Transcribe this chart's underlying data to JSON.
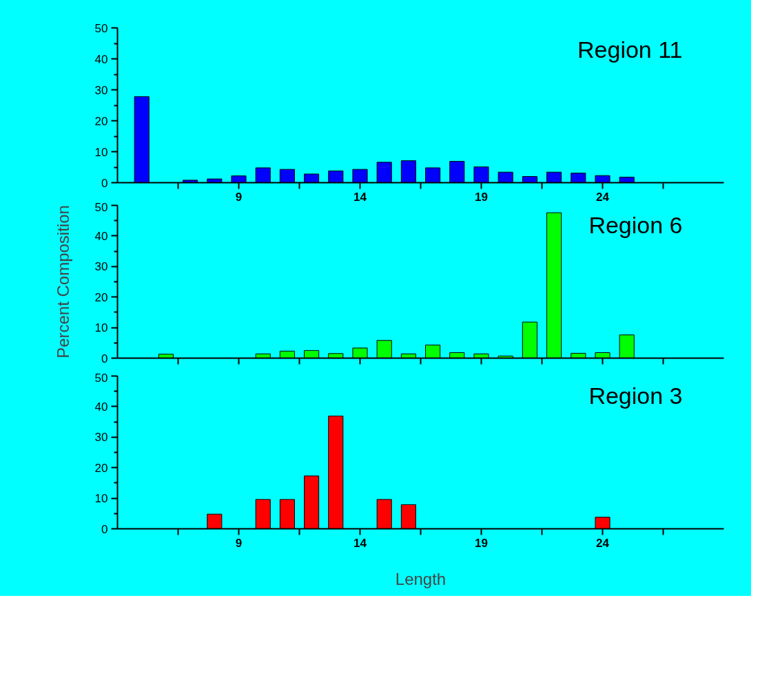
{
  "chart_data": [
    {
      "type": "bar",
      "annotations": [
        "Region 11"
      ],
      "x": [
        5,
        7,
        8,
        9,
        10,
        11,
        12,
        13,
        14,
        15,
        16,
        17,
        18,
        19,
        20,
        21,
        22,
        23,
        24,
        25
      ],
      "series": [
        {
          "color": "#0000ff",
          "values": [
            27.8,
            0.8,
            1.2,
            2.2,
            4.8,
            4.3,
            2.8,
            3.8,
            4.3,
            6.6,
            7.1,
            4.8,
            6.9,
            5.1,
            3.4,
            2.0,
            3.4,
            3.1,
            2.3,
            1.8
          ]
        }
      ],
      "xlim": [
        4,
        29
      ],
      "xticks": [
        {
          "value": 6.5,
          "label": null
        },
        9,
        {
          "value": 11.5,
          "label": null
        },
        14,
        {
          "value": 16.5,
          "label": null
        },
        19,
        {
          "value": 21.5,
          "label": null
        },
        24,
        {
          "value": 26.5,
          "label": null
        }
      ],
      "ylim": [
        0,
        50
      ],
      "yticks": [
        0,
        10,
        20,
        30,
        40,
        50
      ]
    },
    {
      "type": "bar",
      "annotations": [
        "Region 6"
      ],
      "ylabel": "Percent Composition",
      "x": [
        6,
        10,
        11,
        12,
        13,
        14,
        15,
        16,
        17,
        18,
        19,
        20,
        21,
        22,
        23,
        24,
        25
      ],
      "series": [
        {
          "color": "#00ff00",
          "values": [
            1.3,
            1.4,
            2.3,
            2.5,
            1.5,
            3.3,
            5.8,
            1.4,
            4.3,
            1.8,
            1.4,
            0.7,
            11.8,
            47.6,
            1.6,
            1.8,
            7.6
          ]
        }
      ],
      "xlim": [
        4,
        29
      ],
      "xticks": [
        {
          "value": 6.5,
          "label": null
        },
        9,
        {
          "value": 11.5,
          "label": null
        },
        14,
        {
          "value": 16.5,
          "label": null
        },
        19,
        {
          "value": 21.5,
          "label": null
        },
        24,
        {
          "value": 26.5,
          "label": null
        }
      ],
      "ylim": [
        0,
        50
      ],
      "yticks": [
        0,
        10,
        20,
        30,
        40,
        50
      ],
      "tick_labels": "y"
    },
    {
      "type": "bar",
      "annotations": [
        "Region 3"
      ],
      "xlabel": "Length",
      "x": [
        8,
        10,
        11,
        12,
        13,
        15,
        16,
        24
      ],
      "series": [
        {
          "color": "#ff0000",
          "values": [
            4.8,
            9.6,
            9.6,
            17.3,
            36.9,
            9.6,
            7.9,
            3.8
          ]
        }
      ],
      "xlim": [
        4,
        29
      ],
      "xticks": [
        {
          "value": 6.5,
          "label": null
        },
        9,
        {
          "value": 11.5,
          "label": null
        },
        14,
        {
          "value": 16.5,
          "label": null
        },
        19,
        {
          "value": 21.5,
          "label": null
        },
        24,
        {
          "value": 26.5,
          "label": null
        }
      ],
      "ylim": [
        0,
        50
      ],
      "yticks": [
        0,
        10,
        20,
        30,
        40,
        50
      ]
    }
  ]
}
